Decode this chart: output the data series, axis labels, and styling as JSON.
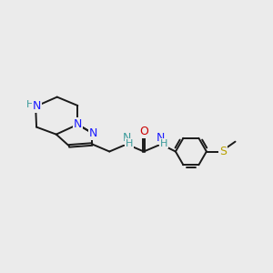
{
  "background_color": "#ebebeb",
  "figsize": [
    3.0,
    3.0
  ],
  "dpi": 100,
  "xlim": [
    -0.5,
    5.8
  ],
  "ylim": [
    -0.2,
    3.2
  ],
  "colors": {
    "black": "#1a1a1a",
    "blue": "#1a1aff",
    "teal": "#3a9a9a",
    "red": "#cc0000",
    "gold": "#b8a000"
  }
}
